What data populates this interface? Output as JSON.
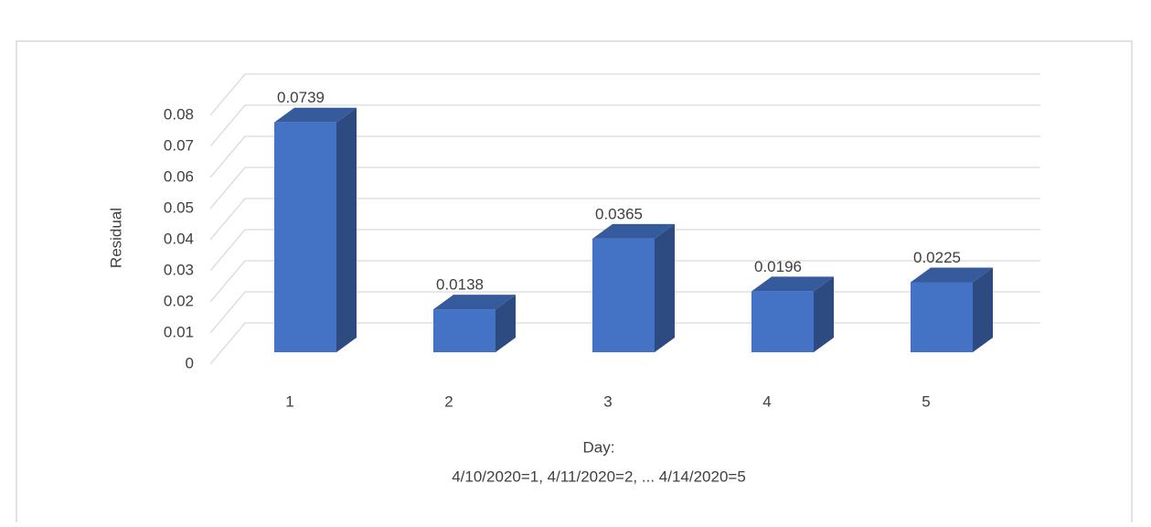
{
  "chart_data": {
    "type": "bar3d",
    "categories": [
      "1",
      "2",
      "3",
      "4",
      "5"
    ],
    "values": [
      0.0739,
      0.0138,
      0.0365,
      0.0196,
      0.0225
    ],
    "color": "#4472c4",
    "ylabel": "Residual",
    "xlabel": [
      "Day:",
      "4/10/2020=1, 4/11/2020=2, ...  4/14/2020=5"
    ],
    "ylim": [
      0,
      0.08
    ],
    "yticks": [
      0,
      0.01,
      0.02,
      0.03,
      0.04,
      0.05,
      0.06,
      0.07,
      0.08
    ],
    "grid": true
  }
}
